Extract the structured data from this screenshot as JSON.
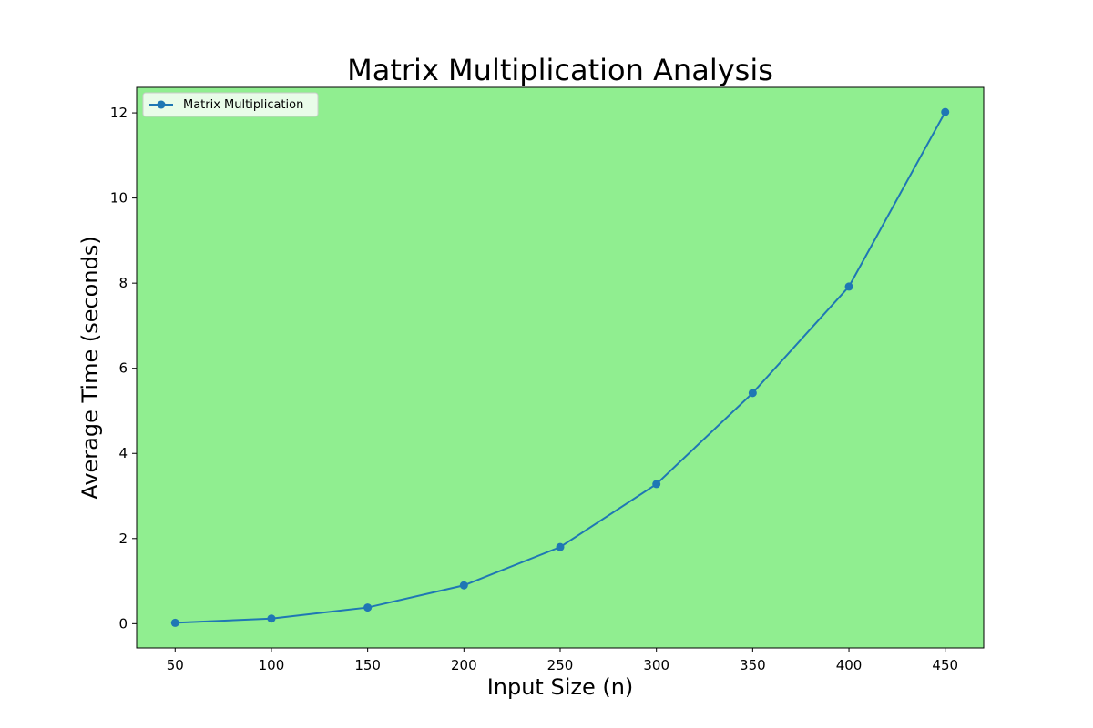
{
  "chart_data": {
    "type": "line",
    "title": "Matrix Multiplication Analysis",
    "xlabel": "Input Size (n)",
    "ylabel": "Average Time (seconds)",
    "x": [
      50,
      100,
      150,
      200,
      250,
      300,
      350,
      400,
      450
    ],
    "series": [
      {
        "name": "Matrix Multiplication",
        "values": [
          0.02,
          0.12,
          0.38,
          0.9,
          1.8,
          3.28,
          5.42,
          7.92,
          12.02
        ],
        "color": "#1f77b4",
        "marker": "circle"
      }
    ],
    "xticks": [
      50,
      100,
      150,
      200,
      250,
      300,
      350,
      400,
      450
    ],
    "yticks": [
      0,
      2,
      4,
      6,
      8,
      10,
      12
    ],
    "xlim": [
      30,
      470
    ],
    "ylim": [
      -0.57,
      12.6
    ],
    "grid": false,
    "legend_position": "upper-left",
    "plot_background": "#90ee90"
  }
}
